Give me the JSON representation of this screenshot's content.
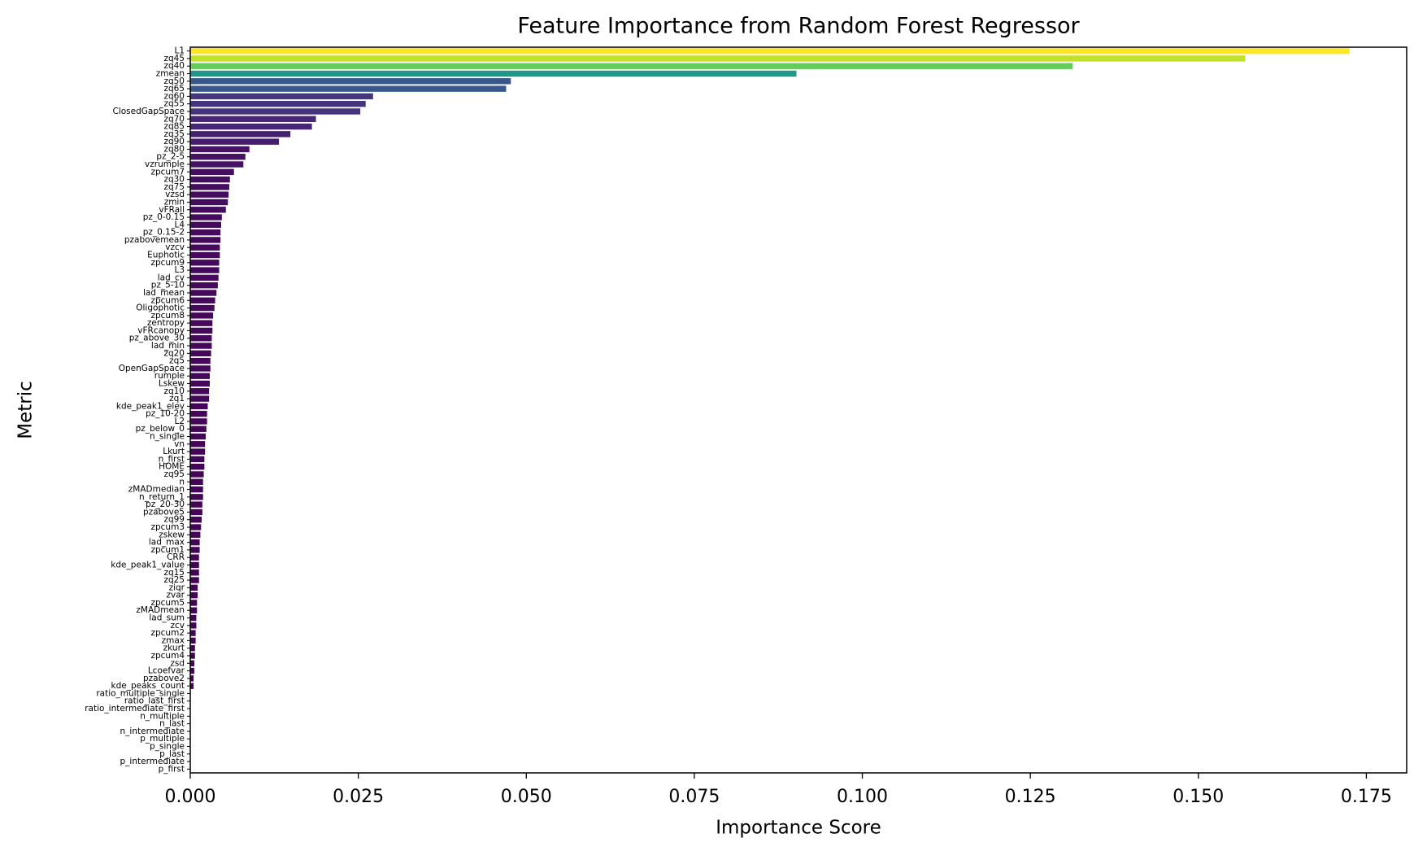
{
  "chart_data": {
    "type": "barh",
    "title": "Feature Importance from Random Forest Regressor",
    "x_label": "Importance Score",
    "y_label": "Metric",
    "colormap": "viridis",
    "categories": [
      "L1",
      "zq45",
      "zq40",
      "zmean",
      "zq50",
      "zq65",
      "zq60",
      "zq55",
      "ClosedGapSpace",
      "zq70",
      "zq85",
      "zq35",
      "zq90",
      "zq80",
      "pz_2-5",
      "vzrumple",
      "zpcum7",
      "zq30",
      "zq75",
      "vzsd",
      "zmin",
      "vFRall",
      "pz_0-0.15",
      "L4",
      "pz_0.15-2",
      "pzabovemean",
      "vzcv",
      "Euphotic",
      "zpcum9",
      "L3",
      "lad_cv",
      "pz_5-10",
      "lad_mean",
      "zpcum6",
      "Oligophotic",
      "zpcum8",
      "zentropy",
      "vFRcanopy",
      "pz_above_30",
      "lad_min",
      "zq20",
      "zq5",
      "OpenGapSpace",
      "rumple",
      "Lskew",
      "zq10",
      "zq1",
      "kde_peak1_elev",
      "pz_10-20",
      "L2",
      "pz_below_0",
      "n_single",
      "vn",
      "Lkurt",
      "n_first",
      "HOME",
      "zq95",
      "n",
      "zMADmedian",
      "n_return_1",
      "pz_20-30",
      "pzabove5",
      "zq99",
      "zpcum3",
      "zskew",
      "lad_max",
      "zpcum1",
      "CRR",
      "kde_peak1_value",
      "zq15",
      "zq25",
      "ziqr",
      "zvar",
      "zpcum5",
      "zMADmean",
      "lad_sum",
      "zcv",
      "zpcum2",
      "zmax",
      "zkurt",
      "zpcum4",
      "zsd",
      "Lcoefvar",
      "pzabove2",
      "kde_peaks_count",
      "ratio_multiple_single",
      "ratio_last_first",
      "ratio_intermediate_first",
      "n_multiple",
      "n_last",
      "n_intermediate",
      "p_multiple",
      "p_single",
      "p_last",
      "p_intermediate",
      "p_first"
    ],
    "values": [
      0.1725,
      0.157,
      0.1313,
      0.0902,
      0.0477,
      0.047,
      0.0272,
      0.0261,
      0.0253,
      0.0187,
      0.0181,
      0.0149,
      0.0132,
      0.0088,
      0.0082,
      0.0079,
      0.0065,
      0.0059,
      0.0058,
      0.0057,
      0.0056,
      0.0053,
      0.0047,
      0.0046,
      0.0045,
      0.0045,
      0.0044,
      0.0044,
      0.0043,
      0.0043,
      0.0042,
      0.0041,
      0.0039,
      0.0037,
      0.0036,
      0.0034,
      0.0033,
      0.0033,
      0.0032,
      0.0032,
      0.0031,
      0.003,
      0.003,
      0.0029,
      0.0029,
      0.0028,
      0.0028,
      0.0026,
      0.0025,
      0.0025,
      0.0024,
      0.0023,
      0.0022,
      0.0022,
      0.0021,
      0.0021,
      0.002,
      0.0019,
      0.0019,
      0.0019,
      0.0018,
      0.0018,
      0.0017,
      0.0016,
      0.0015,
      0.0014,
      0.0014,
      0.0013,
      0.0013,
      0.0013,
      0.0013,
      0.0011,
      0.0011,
      0.001,
      0.001,
      0.0009,
      0.0009,
      0.0008,
      0.0008,
      0.0007,
      0.0007,
      0.0006,
      0.0006,
      0.0005,
      0.0005,
      0,
      0,
      0,
      0,
      0,
      0,
      0,
      0,
      0,
      0,
      0
    ],
    "xlim": [
      0,
      0.181
    ],
    "xticks": [
      {
        "value": 0,
        "label": "0.000"
      },
      {
        "value": 0.025,
        "label": "0.025"
      },
      {
        "value": 0.05,
        "label": "0.050"
      },
      {
        "value": 0.075,
        "label": "0.075"
      },
      {
        "value": 0.1,
        "label": "0.100"
      },
      {
        "value": 0.125,
        "label": "0.125"
      },
      {
        "value": 0.15,
        "label": "0.150"
      },
      {
        "value": 0.175,
        "label": "0.175"
      }
    ],
    "grid": false
  }
}
